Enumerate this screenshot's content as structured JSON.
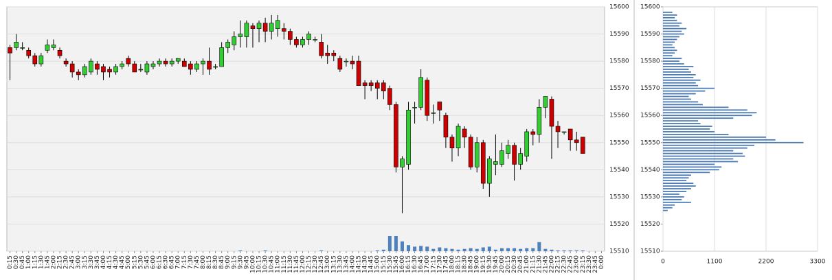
{
  "chart_data": [
    {
      "type": "candlestick",
      "categories": [
        "0:15",
        "0:30",
        "0:45",
        "1:00",
        "1:15",
        "1:30",
        "1:45",
        "2:00",
        "2:15",
        "2:30",
        "2:45",
        "3:00",
        "3:15",
        "3:30",
        "3:45",
        "4:00",
        "4:15",
        "4:30",
        "4:45",
        "5:00",
        "5:15",
        "5:30",
        "5:45",
        "6:00",
        "6:15",
        "6:30",
        "6:45",
        "7:00",
        "7:15",
        "7:30",
        "7:45",
        "8:00",
        "8:15",
        "8:30",
        "8:45",
        "9:00",
        "9:15",
        "9:30",
        "9:45",
        "10:00",
        "10:15",
        "10:30",
        "10:45",
        "11:00",
        "11:15",
        "11:30",
        "11:45",
        "12:00",
        "12:15",
        "12:30",
        "12:45",
        "13:00",
        "13:15",
        "13:30",
        "13:45",
        "14:00",
        "14:15",
        "14:30",
        "14:45",
        "15:00",
        "15:15",
        "15:30",
        "15:45",
        "16:00",
        "16:15",
        "16:30",
        "16:45",
        "17:00",
        "17:15",
        "17:30",
        "17:45",
        "18:00",
        "18:15",
        "18:30",
        "18:45",
        "19:00",
        "19:15",
        "19:30",
        "19:45",
        "20:00",
        "20:15",
        "20:30",
        "20:45",
        "21:00",
        "21:15",
        "21:30",
        "21:45",
        "22:00",
        "22:15",
        "22:30",
        "22:45",
        "23:00",
        "23:15",
        "23:30",
        "23:45",
        "0:00"
      ],
      "open": [
        15585,
        15585,
        15585,
        15584,
        15582,
        15579,
        15584,
        15585,
        15584,
        15580,
        15579,
        15576,
        15575,
        15576,
        15579,
        15578,
        15577,
        15576,
        15578,
        15581,
        15579,
        15577,
        15576,
        15578,
        15579,
        15580,
        15579,
        15580,
        15580,
        15579,
        15577,
        15579,
        15580,
        15578,
        15578,
        15585,
        15586,
        15589,
        15589,
        15593,
        15592,
        15594,
        15591,
        15592,
        15592,
        15591,
        15588,
        15586,
        15588,
        15588,
        15587,
        15583,
        15583,
        15581,
        15580,
        15580,
        15580,
        15572,
        15572,
        15572,
        15572,
        15570,
        15564,
        15541,
        15542,
        15563,
        15563,
        15573,
        15561,
        15565,
        15560,
        15552,
        15548,
        15555,
        15552,
        15541,
        15550,
        15535,
        15542,
        15542,
        15546,
        15549,
        15542,
        15545,
        15554,
        15553,
        15563,
        15566,
        15556,
        15554,
        15555,
        15551,
        15552,
        null,
        null,
        null
      ],
      "high": [
        15586,
        15590,
        15587,
        15585,
        15583,
        15583,
        15588,
        15588,
        15585,
        15581,
        15580,
        15577,
        15579,
        15581,
        15580,
        15579,
        15578,
        15579,
        15580,
        15582,
        15580,
        15579,
        15580,
        15580,
        15581,
        15581,
        15581,
        15581,
        15581,
        15580,
        15580,
        15581,
        15585,
        15579,
        15587,
        15588,
        15591,
        15595,
        15595,
        15594,
        15595,
        15596,
        15597,
        15597,
        15594,
        15592,
        15589,
        15589,
        15591,
        15589,
        15590,
        15586,
        15584,
        15582,
        15581,
        15582,
        15582,
        15573,
        15573,
        15573,
        15573,
        15571,
        15565,
        15545,
        15565,
        15565,
        15577,
        15574,
        15564,
        15565,
        15561,
        15553,
        15557,
        15556,
        15553,
        15552,
        15551,
        15545,
        15553,
        15550,
        15551,
        15550,
        15548,
        15555,
        15555,
        15566,
        15567,
        15567,
        15558,
        15554,
        15555,
        15554,
        15552,
        null,
        null,
        null
      ],
      "low": [
        15573,
        15584,
        15584,
        15581,
        15578,
        15578,
        15583,
        15584,
        15581,
        15578,
        15574,
        15573,
        15574,
        15575,
        15575,
        15573,
        15574,
        15575,
        15577,
        15578,
        15576,
        15576,
        15575,
        15577,
        15578,
        15578,
        15578,
        15579,
        15578,
        15575,
        15576,
        15575,
        15575,
        15577,
        15578,
        15583,
        15584,
        15585,
        15585,
        15585,
        15587,
        15587,
        15588,
        15589,
        15588,
        15586,
        15585,
        15585,
        15586,
        15587,
        15581,
        15579,
        15580,
        15576,
        15578,
        15577,
        15571,
        15566,
        15569,
        15566,
        15566,
        15562,
        15539,
        15524,
        15540,
        15557,
        15562,
        15558,
        15557,
        15558,
        15548,
        15543,
        15545,
        15548,
        15540,
        15539,
        15533,
        15530,
        15538,
        15541,
        15544,
        15536,
        15540,
        15543,
        15549,
        15550,
        15559,
        15544,
        15548,
        15553,
        15547,
        15547,
        15546,
        null,
        null,
        null
      ],
      "close": [
        15583,
        15587,
        15585,
        15582,
        15579,
        15582,
        15586,
        15586,
        15582,
        15579,
        15576,
        15575,
        15578,
        15580,
        15577,
        15576,
        15576,
        15578,
        15579,
        15579,
        15576,
        15577,
        15579,
        15579,
        15580,
        15579,
        15580,
        15581,
        15578,
        15577,
        15579,
        15580,
        15577,
        15578,
        15585,
        15587,
        15589,
        15590,
        15594,
        15592,
        15594,
        15591,
        15594,
        15595,
        15591,
        15588,
        15586,
        15588,
        15590,
        15588,
        15582,
        15582,
        15582,
        15577,
        15580,
        15579,
        15571,
        15571,
        15571,
        15570,
        15569,
        15564,
        15541,
        15544,
        15562,
        15563,
        15574,
        15560,
        15561,
        15562,
        15552,
        15548,
        15556,
        15552,
        15541,
        15550,
        15535,
        15544,
        15543,
        15547,
        15549,
        15542,
        15546,
        15554,
        15553,
        15563,
        15567,
        15556,
        15554,
        15554,
        15551,
        15550,
        15546,
        null,
        null,
        null
      ],
      "volume": [
        0,
        0,
        0,
        0,
        0,
        0,
        0,
        0,
        0,
        0,
        0,
        0,
        0,
        0,
        0,
        0,
        0,
        0,
        0,
        0,
        0,
        0,
        0,
        0,
        0,
        0,
        0,
        0,
        0,
        0,
        0,
        0,
        0,
        0,
        0,
        0,
        0,
        1,
        0,
        0,
        0,
        1,
        0,
        0,
        0,
        0,
        0,
        0,
        0,
        0,
        1,
        0,
        0,
        0,
        0,
        0,
        0,
        0,
        0,
        1,
        2,
        20,
        20,
        13,
        8,
        6,
        7,
        6,
        3,
        5,
        4,
        3,
        2,
        3,
        4,
        3,
        5,
        6,
        2,
        4,
        4,
        4,
        3,
        4,
        4,
        12,
        3,
        2,
        1,
        1,
        1,
        1,
        1,
        null,
        null,
        null
      ],
      "up_color": "#33cc33",
      "down_color": "#cc0000",
      "volume_color": "#4f81bd",
      "ylim": [
        15510,
        15600
      ],
      "yticks": [
        15510,
        15520,
        15530,
        15540,
        15550,
        15560,
        15570,
        15580,
        15590,
        15600
      ],
      "grid": true
    },
    {
      "type": "bar",
      "orientation": "horizontal",
      "categories": [
        15525,
        15526,
        15527,
        15528,
        15529,
        15530,
        15531,
        15532,
        15533,
        15534,
        15535,
        15536,
        15537,
        15538,
        15539,
        15540,
        15541,
        15542,
        15543,
        15544,
        15545,
        15546,
        15547,
        15548,
        15549,
        15550,
        15551,
        15552,
        15553,
        15554,
        15555,
        15556,
        15557,
        15558,
        15559,
        15560,
        15561,
        15562,
        15563,
        15564,
        15565,
        15566,
        15567,
        15568,
        15569,
        15570,
        15571,
        15572,
        15573,
        15574,
        15575,
        15576,
        15577,
        15578,
        15579,
        15580,
        15581,
        15582,
        15583,
        15584,
        15585,
        15586,
        15587,
        15588,
        15589,
        15590,
        15591,
        15592,
        15593,
        15594,
        15595,
        15596,
        15597,
        15598
      ],
      "values": [
        100,
        200,
        250,
        600,
        400,
        450,
        350,
        500,
        600,
        700,
        650,
        500,
        550,
        600,
        1000,
        1200,
        1250,
        1100,
        1600,
        1500,
        1750,
        1700,
        1500,
        1800,
        1950,
        3000,
        2400,
        2200,
        1400,
        1100,
        1000,
        1050,
        800,
        750,
        1500,
        1900,
        2000,
        1800,
        1400,
        850,
        750,
        600,
        550,
        700,
        900,
        1100,
        750,
        700,
        800,
        650,
        700,
        600,
        550,
        650,
        450,
        350,
        400,
        200,
        250,
        300,
        250,
        200,
        250,
        300,
        350,
        450,
        400,
        500,
        350,
        400,
        300,
        250,
        300,
        200
      ],
      "color": "#4a7ab5",
      "xlim": [
        0,
        3300
      ],
      "xticks": [
        0,
        1100,
        2200,
        3300
      ],
      "ylim": [
        15510,
        15600
      ],
      "yticks": [
        15510,
        15520,
        15530,
        15540,
        15550,
        15560,
        15570,
        15580,
        15590,
        15600
      ],
      "grid": true
    }
  ]
}
